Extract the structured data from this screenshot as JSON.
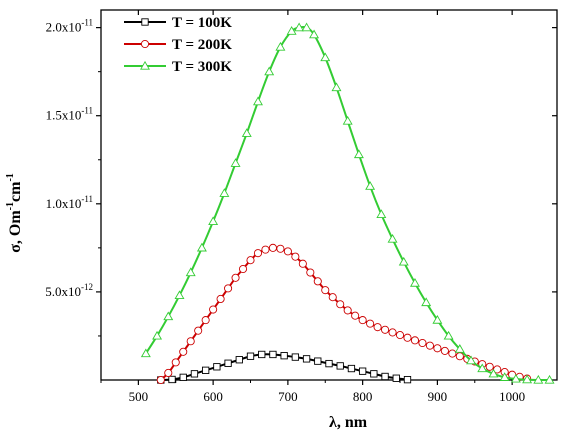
{
  "chart_data": {
    "type": "line",
    "title": "",
    "xlabel": "λ, nm",
    "ylabel_parts": {
      "base": "σ, Om",
      "exp1": "-1",
      "mid": "cm",
      "exp2": "-1"
    },
    "xlim": [
      450,
      1060
    ],
    "ylim": [
      0,
      2.1e-11
    ],
    "xticks": [
      500,
      600,
      700,
      800,
      900,
      1000
    ],
    "xtick_labels": [
      "500",
      "600",
      "700",
      "800",
      "900",
      "1000"
    ],
    "yticks": [
      5e-12,
      1e-11,
      1.5e-11,
      2e-11
    ],
    "ytick_labels": [
      {
        "mant": "5.0x10",
        "exp": "-12"
      },
      {
        "mant": "1.0x10",
        "exp": "-11"
      },
      {
        "mant": "1.5x10",
        "exp": "-11"
      },
      {
        "mant": "2.0x10",
        "exp": "-11"
      }
    ],
    "grid": false,
    "legend_position": "top-left",
    "series": [
      {
        "name": "T = 100K",
        "color": "#000000",
        "marker": "square",
        "x": [
          530,
          545,
          560,
          575,
          590,
          605,
          620,
          635,
          650,
          665,
          680,
          695,
          710,
          725,
          740,
          755,
          770,
          785,
          800,
          815,
          830,
          845,
          860
        ],
        "y": [
          0.0,
          3e-14,
          1.5e-13,
          3.5e-13,
          5.5e-13,
          7.5e-13,
          9.5e-13,
          1.15e-12,
          1.35e-12,
          1.45e-12,
          1.45e-12,
          1.38e-12,
          1.3e-12,
          1.2e-12,
          1.07e-12,
          9.3e-13,
          8e-13,
          6.5e-13,
          5e-13,
          3.5e-13,
          2e-13,
          1e-13,
          2e-14
        ]
      },
      {
        "name": "T = 200K",
        "color": "#cc0000",
        "marker": "circle",
        "x": [
          530,
          540,
          550,
          560,
          570,
          580,
          590,
          600,
          610,
          620,
          630,
          640,
          650,
          660,
          670,
          680,
          690,
          700,
          710,
          720,
          730,
          740,
          750,
          760,
          770,
          780,
          790,
          800,
          810,
          820,
          830,
          840,
          850,
          860,
          870,
          880,
          890,
          900,
          910,
          920,
          930,
          940,
          950,
          960,
          970,
          980,
          990,
          1000,
          1010,
          1020
        ],
        "y": [
          0.0,
          4e-13,
          1e-12,
          1.6e-12,
          2.2e-12,
          2.8e-12,
          3.4e-12,
          4e-12,
          4.6e-12,
          5.2e-12,
          5.8e-12,
          6.3e-12,
          6.8e-12,
          7.2e-12,
          7.4e-12,
          7.5e-12,
          7.45e-12,
          7.3e-12,
          7e-12,
          6.6e-12,
          6.1e-12,
          5.6e-12,
          5.1e-12,
          4.7e-12,
          4.3e-12,
          3.95e-12,
          3.65e-12,
          3.4e-12,
          3.2e-12,
          3e-12,
          2.85e-12,
          2.7e-12,
          2.55e-12,
          2.4e-12,
          2.25e-12,
          2.1e-12,
          1.95e-12,
          1.8e-12,
          1.65e-12,
          1.5e-12,
          1.35e-12,
          1.2e-12,
          1.05e-12,
          9e-13,
          7.5e-13,
          6e-13,
          4.5e-13,
          3e-13,
          1.8e-13,
          8e-14
        ]
      },
      {
        "name": "T = 300K",
        "color": "#33cc33",
        "marker": "triangle",
        "x": [
          510,
          525,
          540,
          555,
          570,
          585,
          600,
          615,
          630,
          645,
          660,
          675,
          690,
          705,
          715,
          725,
          735,
          750,
          765,
          780,
          795,
          810,
          825,
          840,
          855,
          870,
          885,
          900,
          915,
          930,
          945,
          960,
          975,
          990,
          1005,
          1020,
          1035,
          1050
        ],
        "y": [
          1.5e-12,
          2.5e-12,
          3.6e-12,
          4.8e-12,
          6.1e-12,
          7.5e-12,
          9e-12,
          1.06e-11,
          1.23e-11,
          1.4e-11,
          1.58e-11,
          1.75e-11,
          1.89e-11,
          1.98e-11,
          2e-11,
          2e-11,
          1.96e-11,
          1.83e-11,
          1.66e-11,
          1.47e-11,
          1.28e-11,
          1.1e-11,
          9.4e-12,
          8e-12,
          6.7e-12,
          5.5e-12,
          4.4e-12,
          3.4e-12,
          2.5e-12,
          1.75e-12,
          1.1e-12,
          6.5e-13,
          3.5e-13,
          1.5e-13,
          6e-14,
          2e-14,
          0.0,
          0.0
        ]
      }
    ]
  }
}
